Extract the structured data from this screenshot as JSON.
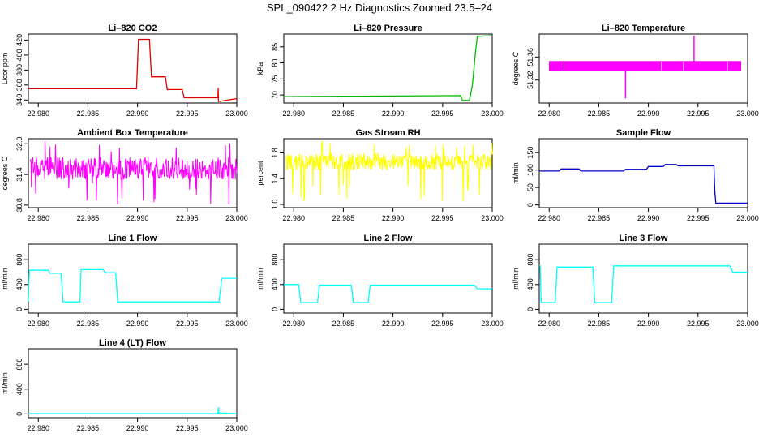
{
  "figure": {
    "title": "SPL_090422  2 Hz Diagnostics Zoomed 23.5–24"
  },
  "chart_data": [
    {
      "type": "line",
      "title": "Li–820 CO2",
      "ylabel": "Licor ppm",
      "color": "#e00000",
      "xlim": [
        22.979,
        23.0
      ],
      "xticks": [
        "22.980",
        "22.985",
        "22.990",
        "22.995",
        "23.000"
      ],
      "ylim": [
        336,
        428
      ],
      "yticks": [
        "340",
        "360",
        "380",
        "400",
        "420"
      ],
      "series": [
        {
          "x": [
            22.979,
            22.9899,
            22.9901,
            22.9912,
            22.9914,
            22.9928,
            22.993,
            22.9945,
            22.9947,
            22.9981,
            22.99813,
            22.99815,
            23.0
          ],
          "y": [
            355,
            355,
            421,
            421,
            371,
            371,
            354,
            354,
            343,
            343,
            356,
            338,
            342
          ]
        }
      ]
    },
    {
      "type": "line",
      "title": "Li–820 Pressure",
      "ylabel": "kPa",
      "color": "#00bb00",
      "xlim": [
        22.979,
        23.0
      ],
      "xticks": [
        "22.980",
        "22.985",
        "22.990",
        "22.995",
        "23.000"
      ],
      "ylim": [
        67.5,
        89
      ],
      "yticks": [
        "70",
        "75",
        "80",
        "85"
      ],
      "series": [
        {
          "x": [
            22.979,
            22.9968,
            22.997,
            22.9977,
            22.998,
            22.9983,
            22.9985,
            23.0
          ],
          "y": [
            69.5,
            69.8,
            68.3,
            68.3,
            73,
            83,
            88.3,
            88.5
          ]
        }
      ]
    },
    {
      "type": "area",
      "title": "Li–820 Temperature",
      "ylabel": "degrees C",
      "color": "#ff00ff",
      "xlim": [
        22.979,
        23.0
      ],
      "xticks": [
        "22.980",
        "22.985",
        "22.990",
        "22.995",
        "23.000"
      ],
      "ylim": [
        51.28,
        51.4
      ],
      "yticks": [
        "51.32",
        "51.36"
      ],
      "band": [
        51.335,
        51.353
      ],
      "spikes": [
        {
          "x": 22.9877,
          "y": 51.288
        },
        {
          "x": 22.9946,
          "y": 51.397
        }
      ]
    },
    {
      "type": "line",
      "title": "Ambient Box Temperature",
      "ylabel": "degrees C",
      "color": "#ff00ff",
      "xlim": [
        22.979,
        23.0
      ],
      "xticks": [
        "22.980",
        "22.985",
        "22.990",
        "22.995",
        "23.000"
      ],
      "ylim": [
        30.75,
        32.1
      ],
      "yticks": [
        "30.8",
        "31.4",
        "32.0"
      ],
      "noise": {
        "center": 31.52,
        "spread": 0.22,
        "min": 30.8,
        "max": 32.05
      }
    },
    {
      "type": "line",
      "title": "Gas Stream RH",
      "ylabel": "percent",
      "color": "#ffff00",
      "xlim": [
        22.979,
        23.0
      ],
      "xticks": [
        "22.980",
        "22.985",
        "22.990",
        "22.995",
        "23.000"
      ],
      "ylim": [
        0.95,
        2.02
      ],
      "yticks": [
        "1.0",
        "1.4",
        "1.8"
      ],
      "noise": {
        "center": 1.66,
        "spread": 0.13,
        "min": 1.0,
        "max": 2.0
      }
    },
    {
      "type": "line",
      "title": "Sample Flow",
      "ylabel": "ml/min",
      "color": "#0000cc",
      "xlim": [
        22.979,
        23.0
      ],
      "xticks": [
        "22.980",
        "22.985",
        "22.990",
        "22.995",
        "23.000"
      ],
      "ylim": [
        -8,
        190
      ],
      "yticks": [
        "0",
        "50",
        "100",
        "150"
      ],
      "series": [
        {
          "x": [
            22.979,
            22.981,
            22.9812,
            22.983,
            22.9832,
            22.9875,
            22.9877,
            22.9898,
            22.99,
            22.9915,
            22.9917,
            22.9928,
            22.993,
            22.9966,
            22.9967,
            22.9968,
            23.0
          ],
          "y": [
            97,
            97,
            103,
            103,
            97,
            97,
            102,
            102,
            110,
            110,
            116,
            116,
            112,
            112,
            35,
            5,
            5
          ]
        }
      ]
    },
    {
      "type": "line",
      "title": "Line 1 Flow",
      "ylabel": "ml/min",
      "color": "#00ffff",
      "xlim": [
        22.979,
        23.0
      ],
      "xticks": [
        "22.980",
        "22.985",
        "22.990",
        "22.995",
        "23.000"
      ],
      "ylim": [
        -60,
        1050
      ],
      "yticks": [
        "0",
        "400",
        "800"
      ],
      "series": [
        {
          "x": [
            22.979,
            22.9791,
            22.981,
            22.9812,
            22.9823,
            22.9825,
            22.9842,
            22.9843,
            22.9865,
            22.9868,
            22.9878,
            22.988,
            22.9982,
            22.9985,
            23.0
          ],
          "y": [
            130,
            630,
            630,
            580,
            580,
            120,
            120,
            640,
            640,
            590,
            590,
            120,
            120,
            500,
            500
          ]
        }
      ]
    },
    {
      "type": "line",
      "title": "Line 2 Flow",
      "ylabel": "ml/min",
      "color": "#00ffff",
      "xlim": [
        22.979,
        23.0
      ],
      "xticks": [
        "22.980",
        "22.985",
        "22.990",
        "22.995",
        "23.000"
      ],
      "ylim": [
        -60,
        1050
      ],
      "yticks": [
        "0",
        "400",
        "800"
      ],
      "series": [
        {
          "x": [
            22.979,
            22.9805,
            22.9807,
            22.9824,
            22.9826,
            22.9858,
            22.986,
            22.9875,
            22.9877,
            22.9982,
            22.9985,
            23.0
          ],
          "y": [
            400,
            400,
            110,
            110,
            390,
            390,
            110,
            110,
            390,
            390,
            330,
            330
          ]
        }
      ]
    },
    {
      "type": "line",
      "title": "Line 3 Flow",
      "ylabel": "ml/min",
      "color": "#00ffff",
      "xlim": [
        22.979,
        23.0
      ],
      "xticks": [
        "22.980",
        "22.985",
        "22.990",
        "22.995",
        "23.000"
      ],
      "ylim": [
        -60,
        1050
      ],
      "yticks": [
        "0",
        "400",
        "800"
      ],
      "series": [
        {
          "x": [
            22.979,
            22.9791,
            22.9792,
            22.9806,
            22.9808,
            22.9844,
            22.9846,
            22.9863,
            22.9865,
            22.9982,
            22.9985,
            23.0
          ],
          "y": [
            700,
            700,
            110,
            110,
            680,
            680,
            110,
            110,
            700,
            700,
            600,
            600
          ]
        }
      ]
    },
    {
      "type": "line",
      "title": "Line 4 (LT) Flow",
      "ylabel": "ml/min",
      "color": "#00ffff",
      "xlim": [
        22.979,
        23.0
      ],
      "xticks": [
        "22.980",
        "22.985",
        "22.990",
        "22.995",
        "23.000"
      ],
      "ylim": [
        -60,
        1050
      ],
      "yticks": [
        "0",
        "400",
        "800"
      ],
      "series": [
        {
          "x": [
            22.979,
            22.9981,
            22.99815,
            22.9982,
            23.0
          ],
          "y": [
            5,
            5,
            110,
            15,
            5
          ]
        }
      ]
    }
  ]
}
